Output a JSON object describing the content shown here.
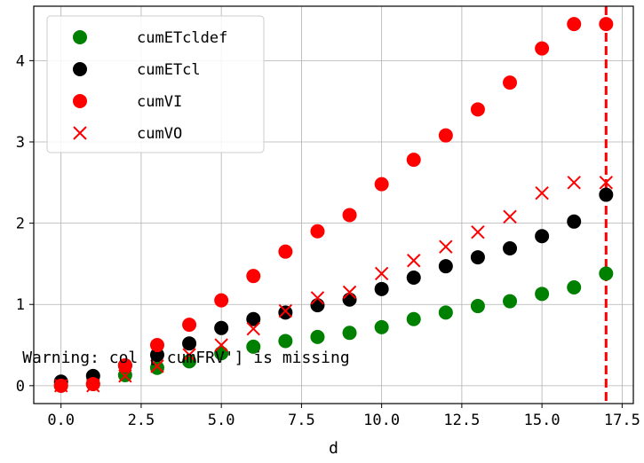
{
  "chart_data": {
    "type": "scatter",
    "xlabel": "d",
    "ylabel": "",
    "xlim": [
      -0.85,
      17.85
    ],
    "ylim": [
      -0.22,
      4.67
    ],
    "xticks": [
      0,
      2.5,
      5,
      7.5,
      10,
      12.5,
      15,
      17.5
    ],
    "xtick_labels": [
      "0.0",
      "2.5",
      "5.0",
      "7.5",
      "10.0",
      "12.5",
      "15.0",
      "17.5"
    ],
    "yticks": [
      0,
      1,
      2,
      3,
      4
    ],
    "ytick_labels": [
      "0",
      "1",
      "2",
      "3",
      "4"
    ],
    "grid": true,
    "legend_position": "upper-left",
    "series": [
      {
        "name": "cumETcldef",
        "marker": "circle",
        "color": "#008000",
        "x": [
          0,
          1,
          2,
          3,
          4,
          5,
          6,
          7,
          8,
          9,
          10,
          11,
          12,
          13,
          14,
          15,
          16,
          17
        ],
        "values": [
          0.0,
          0.02,
          0.13,
          0.22,
          0.3,
          0.4,
          0.48,
          0.55,
          0.6,
          0.65,
          0.72,
          0.82,
          0.9,
          0.98,
          1.04,
          1.13,
          1.21,
          1.38
        ]
      },
      {
        "name": "cumETcl",
        "marker": "circle",
        "color": "#000000",
        "x": [
          0,
          1,
          2,
          3,
          4,
          5,
          6,
          7,
          8,
          9,
          10,
          11,
          12,
          13,
          14,
          15,
          16,
          17
        ],
        "values": [
          0.05,
          0.12,
          0.25,
          0.38,
          0.52,
          0.71,
          0.82,
          0.9,
          0.99,
          1.06,
          1.19,
          1.33,
          1.47,
          1.58,
          1.69,
          1.84,
          2.02,
          2.35
        ]
      },
      {
        "name": "cumVI",
        "marker": "circle",
        "color": "#ff0000",
        "x": [
          0,
          1,
          2,
          3,
          4,
          5,
          6,
          7,
          8,
          9,
          10,
          11,
          12,
          13,
          14,
          15,
          16,
          17
        ],
        "values": [
          0.0,
          0.02,
          0.25,
          0.5,
          0.75,
          1.05,
          1.35,
          1.65,
          1.9,
          2.1,
          2.48,
          2.78,
          3.08,
          3.4,
          3.73,
          4.15,
          4.45,
          4.45
        ]
      },
      {
        "name": "cumVO",
        "marker": "x",
        "color": "#ff0000",
        "x": [
          0,
          1,
          2,
          3,
          4,
          5,
          6,
          7,
          8,
          9,
          10,
          11,
          12,
          13,
          14,
          15,
          16,
          17
        ],
        "values": [
          0.0,
          0.0,
          0.12,
          0.24,
          0.38,
          0.5,
          0.7,
          0.92,
          1.08,
          1.15,
          1.38,
          1.54,
          1.71,
          1.89,
          2.08,
          2.37,
          2.5,
          2.5
        ]
      }
    ],
    "vline": {
      "x": 17,
      "color": "#ff0000",
      "style": "dashed"
    },
    "annotation": {
      "text": "Warning: col ['cumFRV'] is missing",
      "x": 3.9,
      "y": 0.35
    }
  }
}
